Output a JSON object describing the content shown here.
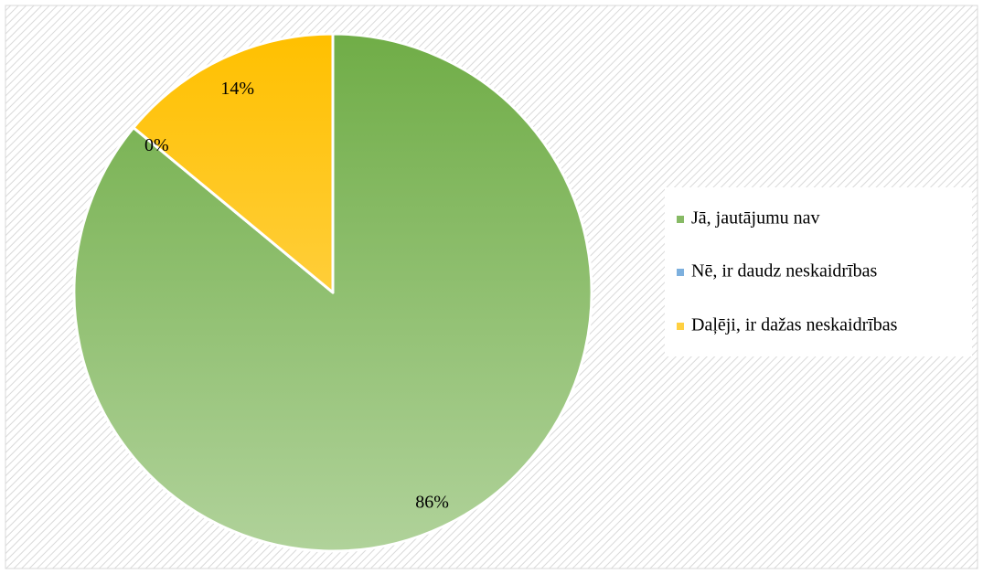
{
  "chart_data": {
    "type": "pie",
    "categories": [
      "Jā, jautājumu nav",
      "Nē, ir daudz neskaidrības",
      "Daļēji, ir dažas neskaidrības"
    ],
    "values": [
      86,
      0,
      14
    ],
    "value_labels": [
      "86%",
      "0%",
      "14%"
    ],
    "colors": [
      "#70ad47",
      "#5b9bd5",
      "#ffc000"
    ],
    "legend": "right"
  }
}
